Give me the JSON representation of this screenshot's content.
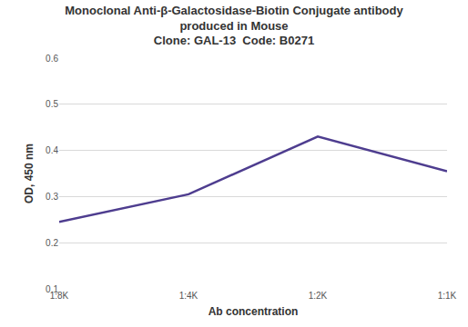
{
  "chart_data": {
    "type": "line",
    "title": "Monoclonal Anti-β-Galactosidase-Biotin Conjugate antibody\nproduced in Mouse\nClone: GAL-13  Code: B0271",
    "x_label": "Ab concentration",
    "y_label": "OD, 450 nm",
    "categories": [
      "1:8K",
      "1:4K",
      "1:2K",
      "1:1K"
    ],
    "values": [
      0.245,
      0.305,
      0.43,
      0.355
    ],
    "color": "#4e3d8f",
    "ylim": [
      0.1,
      0.6
    ],
    "yticks": [
      0.1,
      0.2,
      0.3,
      0.4,
      0.5,
      0.6
    ],
    "grid": true
  }
}
